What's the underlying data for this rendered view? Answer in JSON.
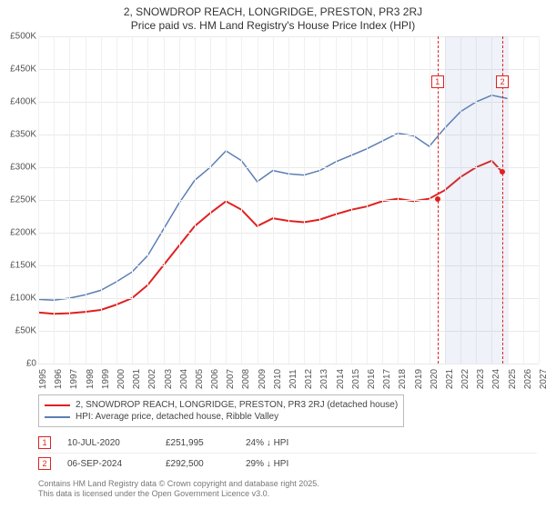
{
  "title": {
    "line1": "2, SNOWDROP REACH, LONGRIDGE, PRESTON, PR3 2RJ",
    "line2": "Price paid vs. HM Land Registry's House Price Index (HPI)",
    "fontsize": 12,
    "color": "#333333"
  },
  "chart": {
    "type": "line",
    "background_color": "#ffffff",
    "grid_color": "#e9e9e9",
    "x": {
      "min": 1995,
      "max": 2027,
      "ticks": [
        1995,
        1996,
        1997,
        1998,
        1999,
        2000,
        2001,
        2002,
        2003,
        2004,
        2005,
        2006,
        2007,
        2008,
        2009,
        2010,
        2011,
        2012,
        2013,
        2014,
        2015,
        2016,
        2017,
        2018,
        2019,
        2020,
        2021,
        2022,
        2023,
        2024,
        2025,
        2026,
        2027
      ],
      "label_fontsize": 10
    },
    "y": {
      "min": 0,
      "max": 500000,
      "tick_step": 50000,
      "ticks": [
        0,
        50000,
        100000,
        150000,
        200000,
        250000,
        300000,
        350000,
        400000,
        450000,
        500000
      ],
      "tick_labels": [
        "£0",
        "£50K",
        "£100K",
        "£150K",
        "£200K",
        "£250K",
        "£300K",
        "£350K",
        "£400K",
        "£450K",
        "£500K"
      ],
      "label_fontsize": 10
    },
    "recent_band": {
      "start": 2021,
      "end": 2025,
      "color": "rgba(120,150,200,0.12)"
    },
    "series": [
      {
        "key": "price_paid",
        "label": "2, SNOWDROP REACH, LONGRIDGE, PRESTON, PR3 2RJ (detached house)",
        "color": "#e02020",
        "line_width": 2,
        "points": [
          [
            1995,
            78000
          ],
          [
            1996,
            76000
          ],
          [
            1997,
            77000
          ],
          [
            1998,
            79000
          ],
          [
            1999,
            82000
          ],
          [
            2000,
            90000
          ],
          [
            2001,
            100000
          ],
          [
            2002,
            120000
          ],
          [
            2003,
            150000
          ],
          [
            2004,
            180000
          ],
          [
            2005,
            210000
          ],
          [
            2006,
            230000
          ],
          [
            2007,
            248000
          ],
          [
            2008,
            235000
          ],
          [
            2009,
            210000
          ],
          [
            2010,
            222000
          ],
          [
            2011,
            218000
          ],
          [
            2012,
            216000
          ],
          [
            2013,
            220000
          ],
          [
            2014,
            228000
          ],
          [
            2015,
            235000
          ],
          [
            2016,
            240000
          ],
          [
            2017,
            248000
          ],
          [
            2018,
            252000
          ],
          [
            2019,
            248000
          ],
          [
            2020,
            251995
          ],
          [
            2021,
            265000
          ],
          [
            2022,
            285000
          ],
          [
            2023,
            300000
          ],
          [
            2024,
            310000
          ],
          [
            2024.68,
            292500
          ]
        ]
      },
      {
        "key": "hpi",
        "label": "HPI: Average price, detached house, Ribble Valley",
        "color": "#5b7fb5",
        "line_width": 1.5,
        "points": [
          [
            1995,
            98000
          ],
          [
            1996,
            97000
          ],
          [
            1997,
            100000
          ],
          [
            1998,
            105000
          ],
          [
            1999,
            112000
          ],
          [
            2000,
            125000
          ],
          [
            2001,
            140000
          ],
          [
            2002,
            165000
          ],
          [
            2003,
            205000
          ],
          [
            2004,
            245000
          ],
          [
            2005,
            280000
          ],
          [
            2006,
            300000
          ],
          [
            2007,
            325000
          ],
          [
            2008,
            310000
          ],
          [
            2009,
            278000
          ],
          [
            2010,
            295000
          ],
          [
            2011,
            290000
          ],
          [
            2012,
            288000
          ],
          [
            2013,
            295000
          ],
          [
            2014,
            308000
          ],
          [
            2015,
            318000
          ],
          [
            2016,
            328000
          ],
          [
            2017,
            340000
          ],
          [
            2018,
            352000
          ],
          [
            2019,
            348000
          ],
          [
            2020,
            332000
          ],
          [
            2021,
            360000
          ],
          [
            2022,
            385000
          ],
          [
            2023,
            400000
          ],
          [
            2024,
            410000
          ],
          [
            2025,
            405000
          ]
        ]
      }
    ],
    "sales": [
      {
        "n": "1",
        "year": 2020.53,
        "date": "10-JUL-2020",
        "price_value": 251995,
        "price": "£251,995",
        "delta": "24% ↓ HPI"
      },
      {
        "n": "2",
        "year": 2024.68,
        "date": "06-SEP-2024",
        "price_value": 292500,
        "price": "£292,500",
        "delta": "29% ↓ HPI"
      }
    ]
  },
  "legend": {
    "border_color": "#bbbbbb",
    "fontsize": 10
  },
  "footer": {
    "line1": "Contains HM Land Registry data © Crown copyright and database right 2025.",
    "line2": "This data is licensed under the Open Government Licence v3.0.",
    "fontsize": 9,
    "color": "#777777"
  }
}
